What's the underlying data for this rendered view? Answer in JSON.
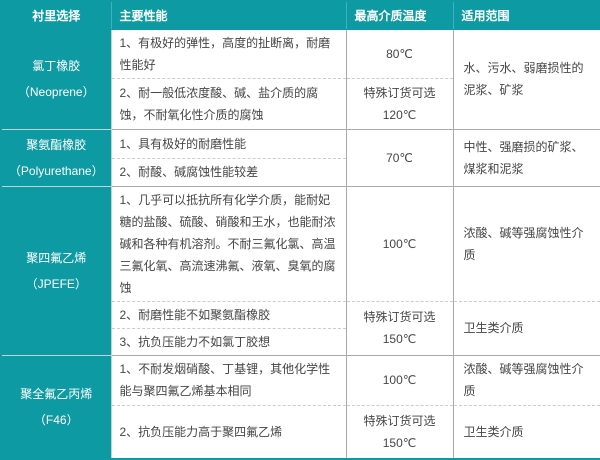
{
  "colors": {
    "accent": "#0e9aa3",
    "grid": "#a9a9a9",
    "grid_dashed": "#cccccc",
    "header_text": "#ffffff",
    "body_text": "#454545"
  },
  "header": {
    "col1": "衬里选择",
    "col2": "主要性能",
    "col3": "最高介质温度",
    "col4": "适用范围"
  },
  "rows": [
    {
      "lining": "氯丁橡胶",
      "lining_sub": "（Neoprene）",
      "scope": "水、污水、弱磨损性的泥浆、矿浆",
      "subrows": [
        {
          "performance": "1、有极好的弹性，高度的扯断离，耐磨性能好",
          "temperature": "80℃"
        },
        {
          "performance": "2、耐一般低浓度酸、碱、盐介质的腐蚀，不耐氧化性介质的腐蚀",
          "temperature": "特殊订货可选\n120℃"
        }
      ]
    },
    {
      "lining": "聚氨酯橡胶",
      "lining_sub": "（Polyurethane）",
      "temperature": "70℃",
      "scope": "中性、强磨损的矿浆、煤浆和泥浆",
      "subrows": [
        {
          "performance": "1、具有极好的耐磨性能"
        },
        {
          "performance": "2、耐酸、碱腐蚀性能较差"
        }
      ]
    },
    {
      "lining": "聚四氟乙烯",
      "lining_sub": "（JPEFE）",
      "subrows": [
        {
          "performance": "1、几乎可以抵抗所有化学介质，能耐妃糖的盐酸、硫酸、硝酸和王水，也能耐浓碱和各种有机溶剂。不耐三氟化氯、高温三氟化氧、高流速沸氟、液氧、臭氧的腐蚀",
          "temperature": "100℃",
          "scope": "浓酸、碱等强腐蚀性介质"
        },
        {
          "performance": "2、耐磨性能不如聚氨酯橡胶",
          "temperature": "特殊订货可选\n150℃",
          "scope": "卫生类介质"
        },
        {
          "performance": "3、抗负压能力不如氯丁胶想"
        }
      ]
    },
    {
      "lining": "聚全氟乙丙烯",
      "lining_sub": "（F46）",
      "subrows": [
        {
          "performance": "1、不耐发烟硝酸、丁基锂，其他化学性能与聚四氟乙烯基本相同",
          "temperature": "100℃",
          "scope": "浓酸、碱等强腐蚀性介质"
        },
        {
          "performance": "2、抗负压能力高于聚四氟乙烯",
          "temperature": "特殊订货可选\n150℃",
          "scope": "卫生类介质"
        }
      ]
    }
  ]
}
